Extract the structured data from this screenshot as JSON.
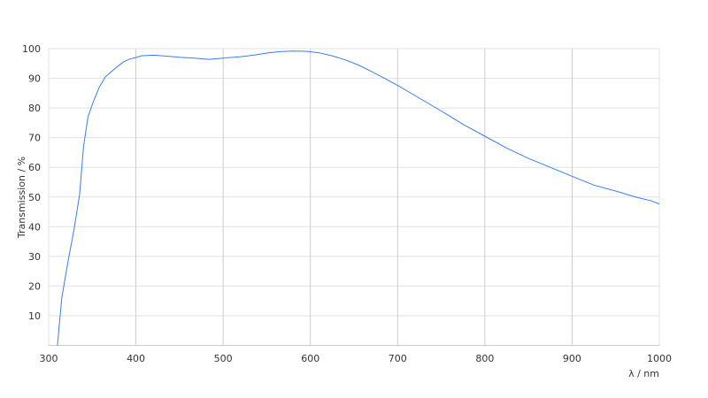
{
  "chart_data": {
    "type": "line",
    "title": "",
    "xlabel": "λ / nm",
    "ylabel": "Transmission / %",
    "xlim": [
      300,
      1000
    ],
    "ylim": [
      0,
      100
    ],
    "x_ticks": [
      300,
      400,
      500,
      600,
      700,
      800,
      900,
      1000
    ],
    "y_ticks": [
      10,
      20,
      30,
      40,
      50,
      60,
      70,
      80,
      90,
      100
    ],
    "grid": true,
    "line_color": "#3b7ded",
    "series": [
      {
        "x": [
          310,
          315,
          322,
          329,
          335.5,
          340,
          345,
          351,
          358,
          365,
          371,
          378,
          386,
          393,
          400,
          406,
          420,
          434,
          450,
          467,
          484,
          500,
          520,
          535,
          550,
          565,
          580,
          595,
          610,
          625,
          640,
          655,
          670,
          685,
          700,
          725,
          750,
          775,
          800,
          825,
          850,
          875,
          900,
          925,
          950,
          975,
          990,
          1000
        ],
        "y": [
          0,
          16,
          28,
          39,
          51,
          67,
          77,
          82,
          87,
          90.5,
          92,
          93.8,
          95.6,
          96.5,
          97,
          97.6,
          97.8,
          97.5,
          97.1,
          96.8,
          96.4,
          96.8,
          97.3,
          97.8,
          98.5,
          99,
          99.2,
          99.1,
          98.6,
          97.6,
          96.2,
          94.5,
          92.3,
          90,
          87.6,
          83.3,
          79,
          74.5,
          70.5,
          66.5,
          63,
          60,
          57,
          54,
          52,
          49.8,
          48.8,
          47.7
        ]
      }
    ]
  }
}
